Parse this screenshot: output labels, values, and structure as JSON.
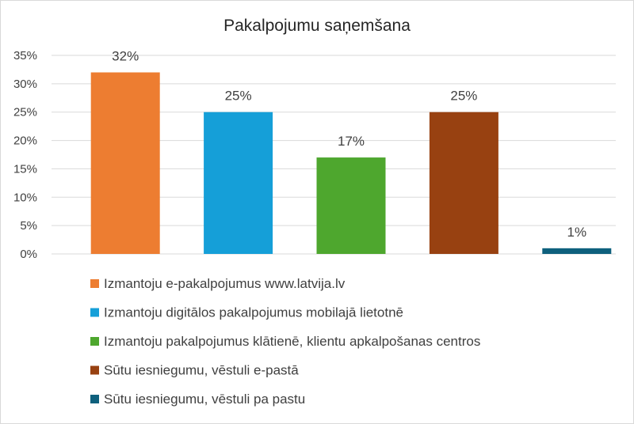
{
  "chart_data": {
    "type": "bar",
    "title": "Pakalpojumu saņemšana",
    "categories": [
      "Izmantoju e-pakalpojumus www.latvija.lv",
      "Izmantoju digitālos pakalpojumus mobilajā lietotnē",
      "Izmantoju pakalpojumus klātienē, klientu apkalpošanas centros",
      "Sūtu iesniegumu, vēstuli e-pastā",
      "Sūtu iesniegumu, vēstuli pa pastu"
    ],
    "values": [
      32,
      25,
      17,
      25,
      1
    ],
    "data_labels": [
      "32%",
      "25%",
      "17%",
      "25%",
      "1%"
    ],
    "colors": [
      "#ed7d31",
      "#159fd8",
      "#4ea72e",
      "#984111",
      "#0e607d"
    ],
    "ylim": [
      0,
      35
    ],
    "yticks": [
      0,
      5,
      10,
      15,
      20,
      25,
      30,
      35
    ],
    "ytick_labels": [
      "0%",
      "5%",
      "10%",
      "15%",
      "20%",
      "25%",
      "30%",
      "35%"
    ],
    "xlabel": "",
    "ylabel": "",
    "grid": true,
    "legend_position": "bottom"
  }
}
